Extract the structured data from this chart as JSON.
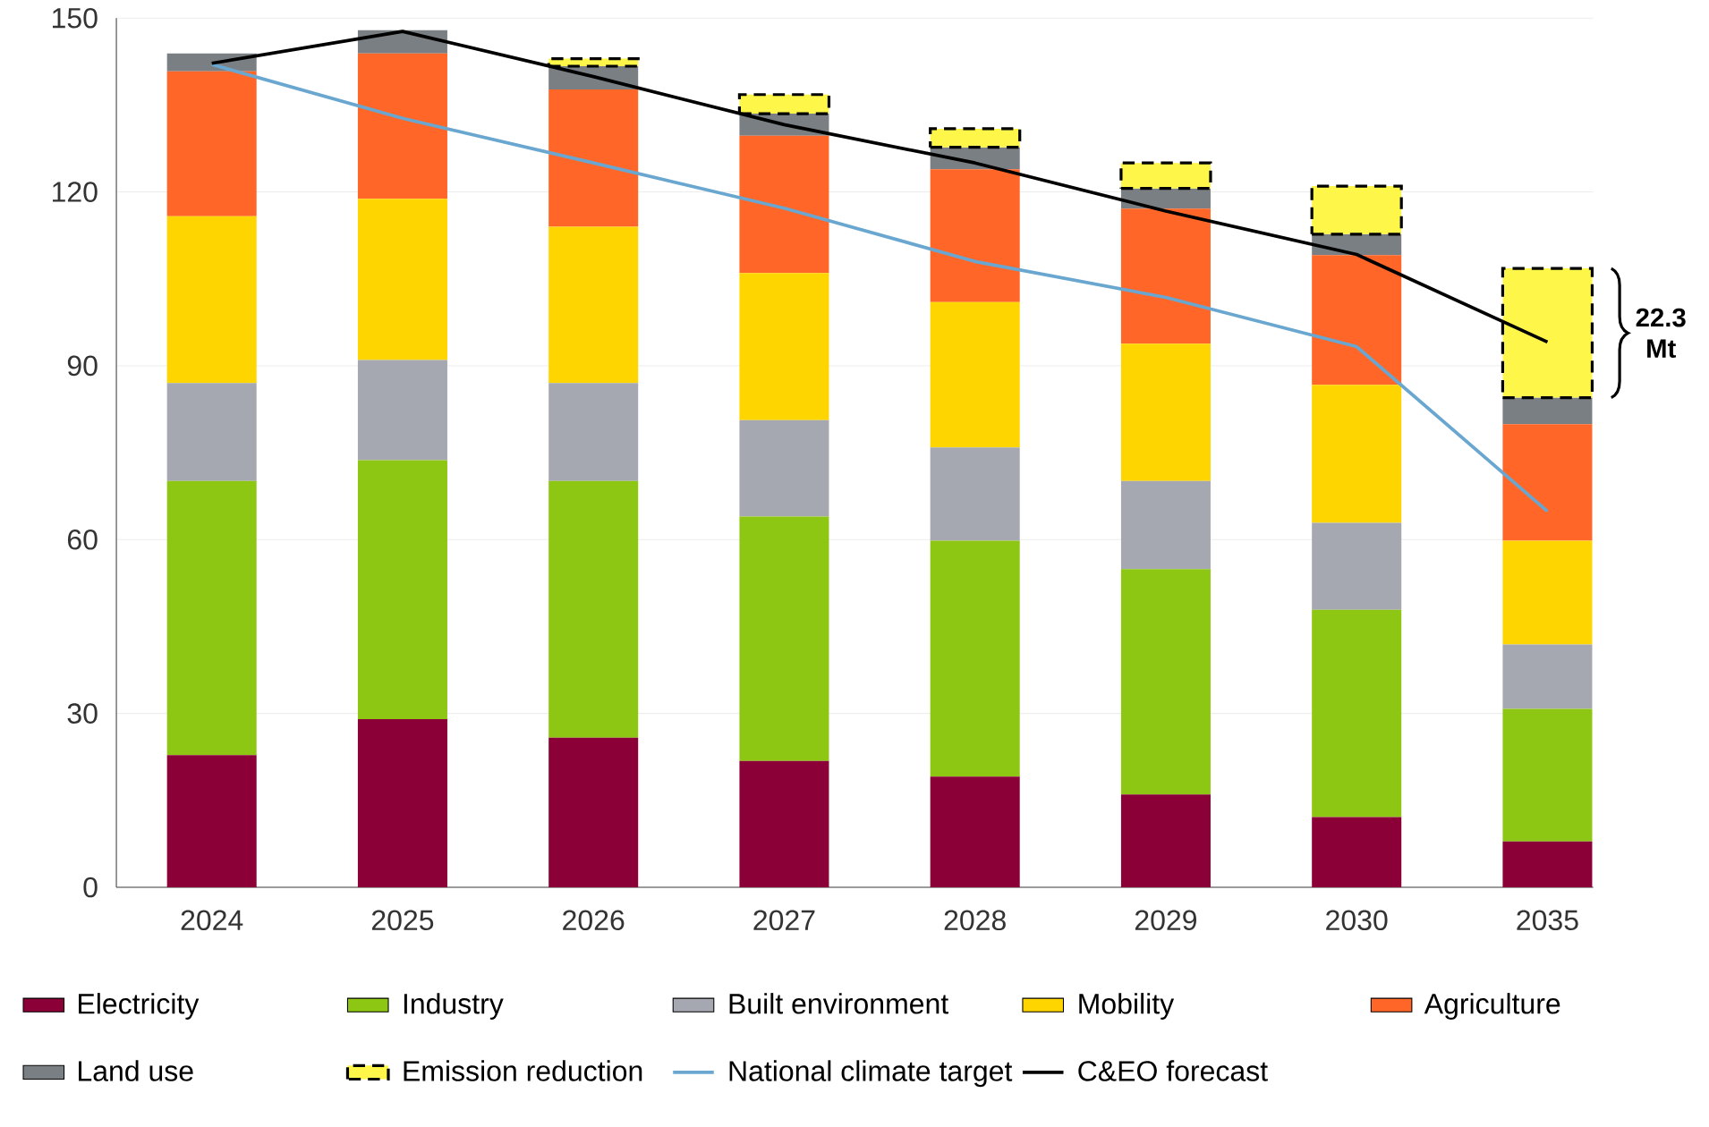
{
  "chart_data": {
    "type": "bar",
    "stacked": true,
    "grid": "y",
    "legend": "bottom",
    "categories": [
      "2024",
      "2025",
      "2026",
      "2027",
      "2028",
      "2029",
      "2030",
      "2035"
    ],
    "ylim": [
      0,
      150
    ],
    "yticks": [
      0,
      30,
      60,
      90,
      120,
      150
    ],
    "series": [
      {
        "name": "Electricity",
        "color": "#8b0037",
        "values": [
          22.8,
          29.0,
          25.8,
          21.8,
          19.1,
          16.0,
          12.1,
          7.9
        ]
      },
      {
        "name": "Industry",
        "color": "#8dc713",
        "values": [
          47.3,
          44.7,
          44.3,
          42.2,
          40.7,
          38.9,
          35.8,
          22.9
        ]
      },
      {
        "name": "Built environment",
        "color": "#a5a8b0",
        "values": [
          16.9,
          17.3,
          16.9,
          16.6,
          16.1,
          15.2,
          15.0,
          11.1
        ]
      },
      {
        "name": "Mobility",
        "color": "#ffd500",
        "values": [
          28.8,
          27.8,
          27.0,
          25.4,
          25.1,
          23.7,
          23.8,
          17.9
        ]
      },
      {
        "name": "Agriculture",
        "color": "#ff6628",
        "values": [
          25.0,
          25.1,
          23.7,
          23.7,
          22.9,
          23.3,
          22.4,
          20.1
        ]
      },
      {
        "name": "Land use",
        "color": "#7a7f83",
        "values": [
          3.1,
          4.0,
          4.0,
          3.8,
          3.8,
          3.5,
          3.6,
          4.6
        ]
      },
      {
        "name": "Emission reduction",
        "color": "#fff64a",
        "line_style": "dashed",
        "values": [
          null,
          null,
          1.3,
          3.3,
          3.2,
          4.4,
          8.3,
          22.3
        ]
      },
      {
        "name": "National climate target",
        "type": "line",
        "color": "#6aa7d0",
        "values": [
          142.0,
          132.7,
          125.0,
          117.2,
          108.0,
          101.8,
          93.3,
          64.9
        ]
      },
      {
        "name": "C&EO forecast",
        "type": "line",
        "color": "#000000",
        "values": [
          142.2,
          147.7,
          139.9,
          131.6,
          125.0,
          116.7,
          109.2,
          94.1
        ]
      }
    ],
    "annotations": [
      "22.3 Mt"
    ]
  }
}
